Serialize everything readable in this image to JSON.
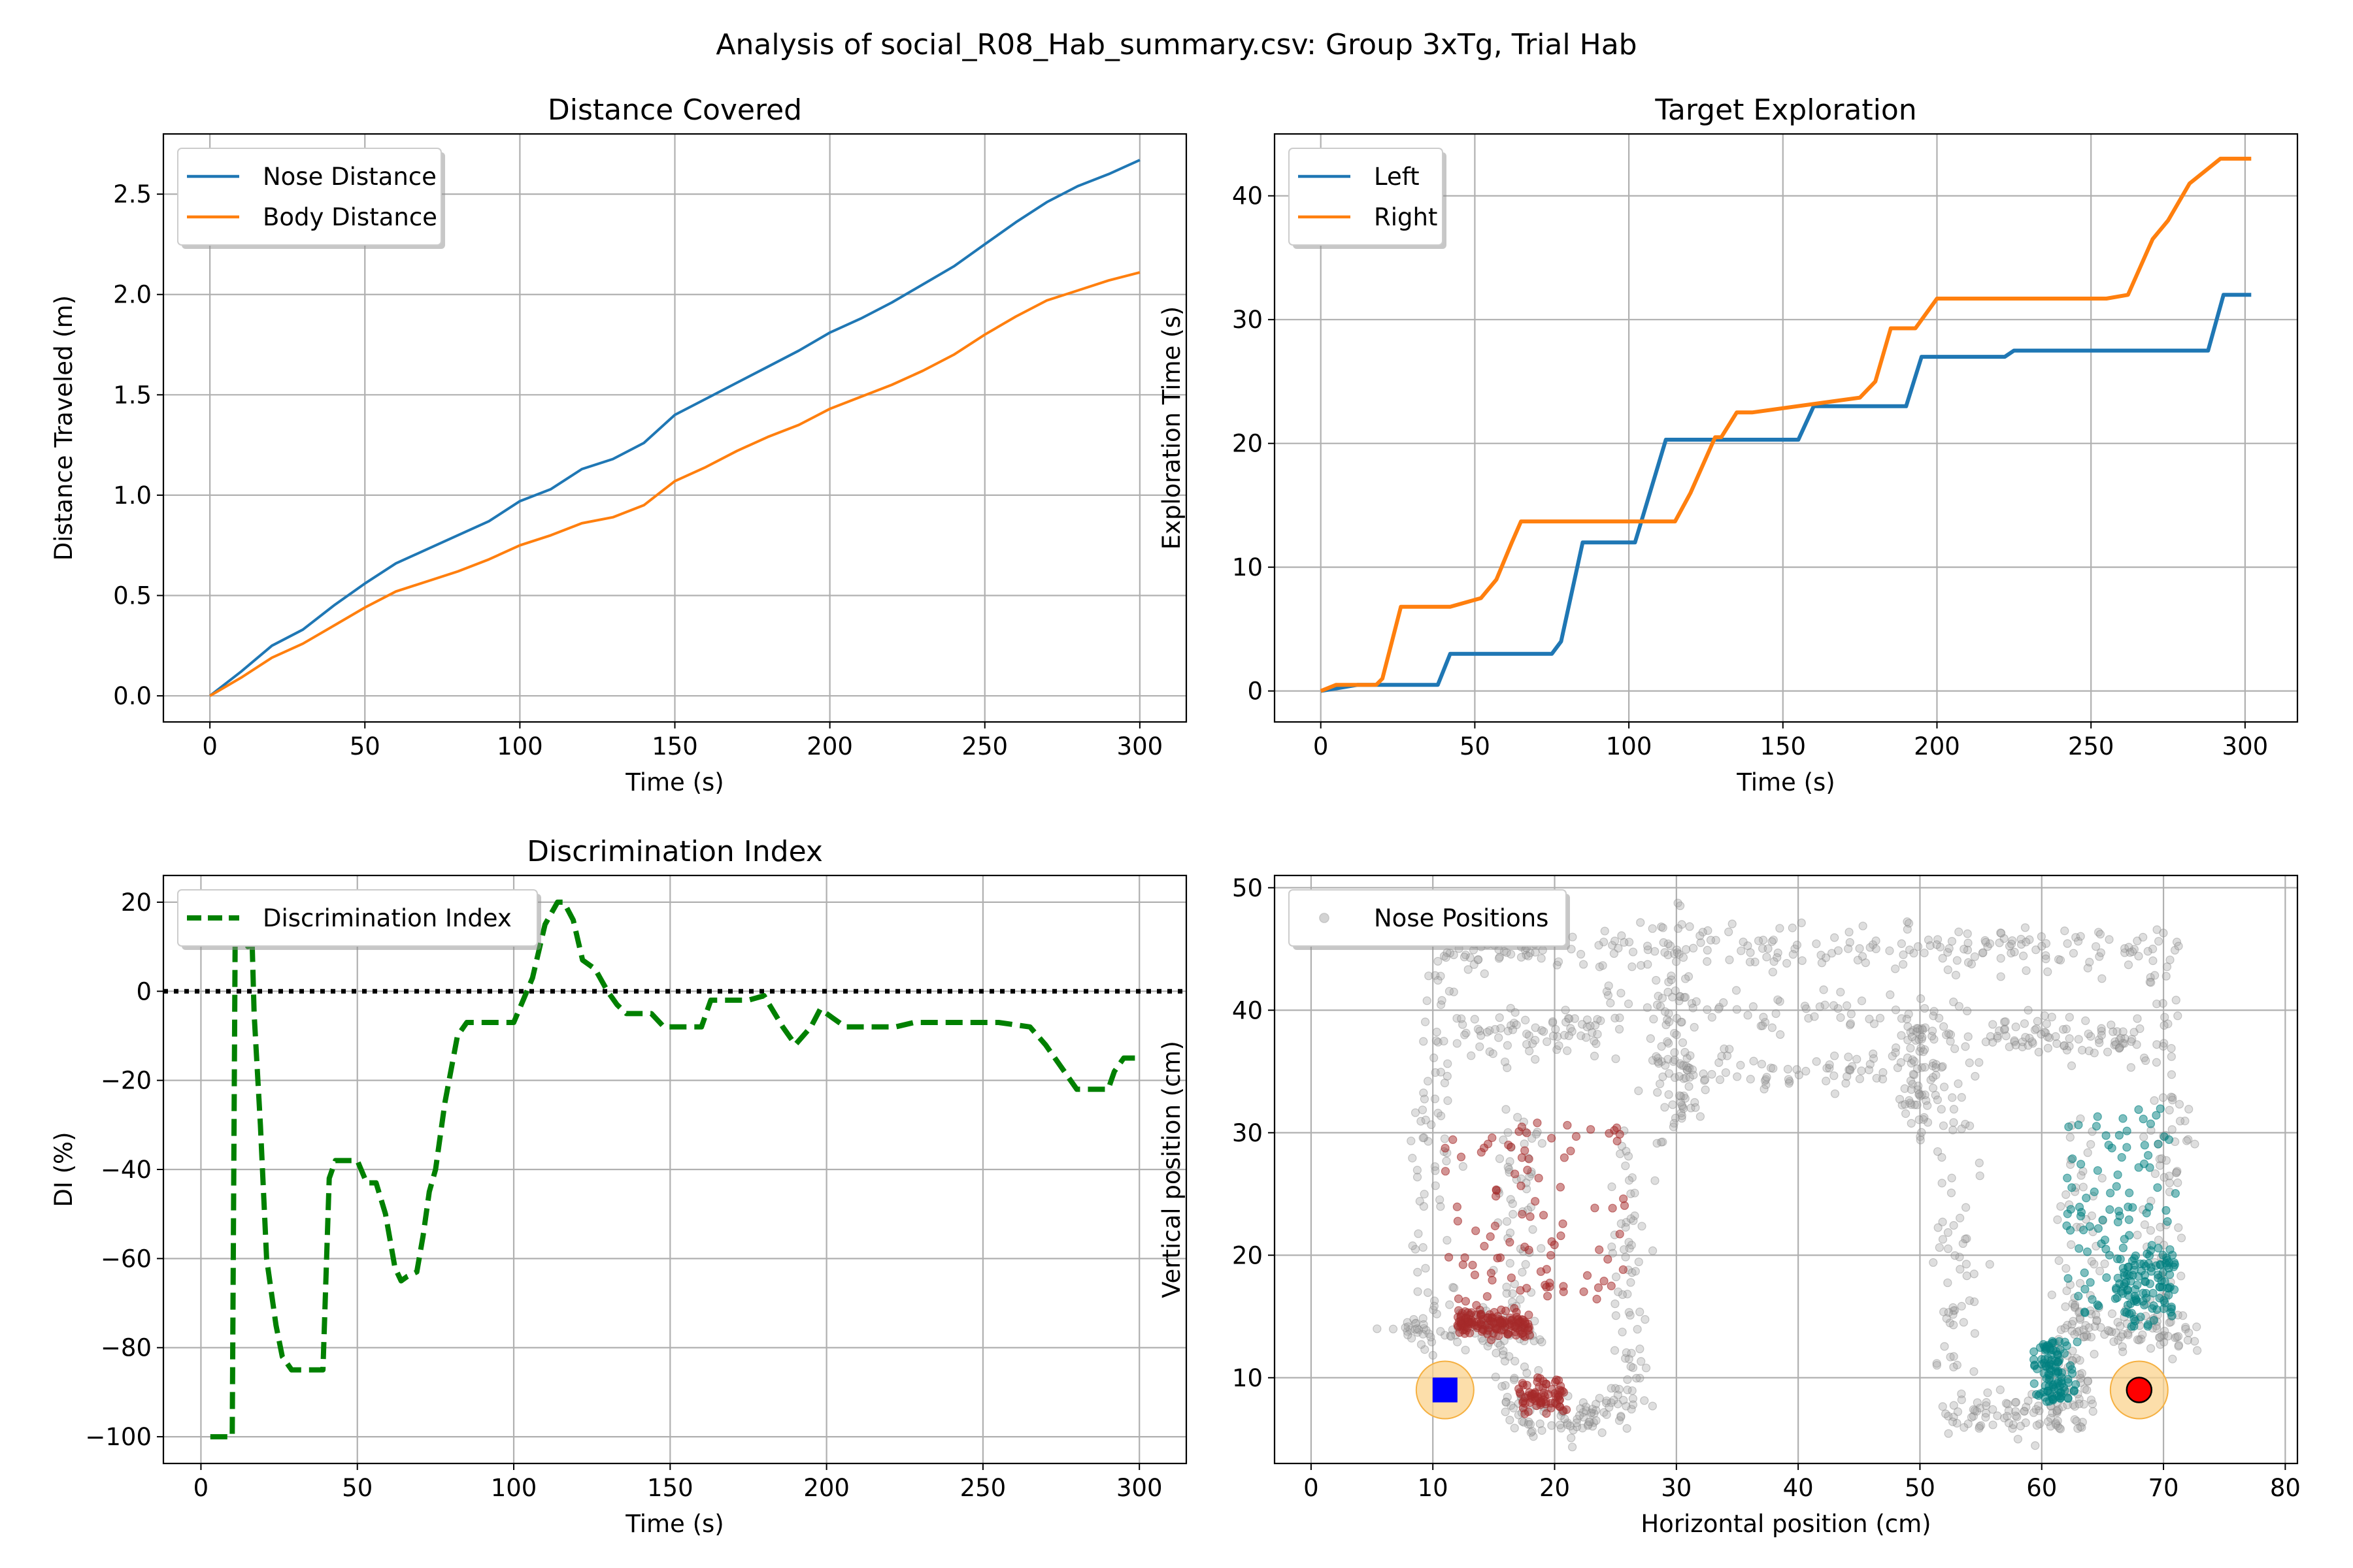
{
  "figure": {
    "suptitle": "Analysis of social_R08_Hab_summary.csv: Group 3xTg, Trial Hab"
  },
  "chart_data": [
    {
      "id": "distance",
      "type": "line",
      "title": "Distance Covered",
      "xlabel": "Time (s)",
      "ylabel": "Distance Traveled (m)",
      "xlim": [
        -15,
        315
      ],
      "ylim": [
        -0.13,
        2.8
      ],
      "xticks": [
        0,
        50,
        100,
        150,
        200,
        250,
        300
      ],
      "yticks": [
        0.0,
        0.5,
        1.0,
        1.5,
        2.0,
        2.5
      ],
      "ytick_labels": [
        "0.0",
        "0.5",
        "1.0",
        "1.5",
        "2.0",
        "2.5"
      ],
      "grid": true,
      "legend_position": "upper-left",
      "series": [
        {
          "name": "Nose Distance",
          "color": "#1f77b4",
          "x": [
            0,
            10,
            20,
            30,
            40,
            50,
            60,
            70,
            80,
            90,
            100,
            110,
            120,
            130,
            140,
            150,
            160,
            170,
            180,
            190,
            200,
            210,
            220,
            230,
            240,
            250,
            260,
            270,
            280,
            290,
            300
          ],
          "y": [
            0.0,
            0.12,
            0.25,
            0.33,
            0.45,
            0.56,
            0.66,
            0.73,
            0.8,
            0.87,
            0.97,
            1.03,
            1.13,
            1.18,
            1.26,
            1.4,
            1.48,
            1.56,
            1.64,
            1.72,
            1.81,
            1.88,
            1.96,
            2.05,
            2.14,
            2.25,
            2.36,
            2.46,
            2.54,
            2.6,
            2.67
          ]
        },
        {
          "name": "Body Distance",
          "color": "#ff7f0e",
          "x": [
            0,
            10,
            20,
            30,
            40,
            50,
            60,
            70,
            80,
            90,
            100,
            110,
            120,
            130,
            140,
            150,
            160,
            170,
            180,
            190,
            200,
            210,
            220,
            230,
            240,
            250,
            260,
            270,
            280,
            290,
            300
          ],
          "y": [
            0.0,
            0.09,
            0.19,
            0.26,
            0.35,
            0.44,
            0.52,
            0.57,
            0.62,
            0.68,
            0.75,
            0.8,
            0.86,
            0.89,
            0.95,
            1.07,
            1.14,
            1.22,
            1.29,
            1.35,
            1.43,
            1.49,
            1.55,
            1.62,
            1.7,
            1.8,
            1.89,
            1.97,
            2.02,
            2.07,
            2.11
          ]
        }
      ]
    },
    {
      "id": "exploration",
      "type": "line",
      "title": "Target Exploration",
      "xlabel": "Time (s)",
      "ylabel": "Exploration Time (s)",
      "xlim": [
        -15,
        317
      ],
      "ylim": [
        -2.5,
        45
      ],
      "xticks": [
        0,
        50,
        100,
        150,
        200,
        250,
        300
      ],
      "yticks": [
        0,
        10,
        20,
        30,
        40
      ],
      "ytick_labels": [
        "0",
        "10",
        "20",
        "30",
        "40"
      ],
      "grid": true,
      "legend_position": "upper-left",
      "series": [
        {
          "name": "Left",
          "color": "#1f77b4",
          "x": [
            0,
            12,
            38,
            42,
            75,
            78,
            85,
            102,
            112,
            155,
            160,
            190,
            195,
            222,
            225,
            288,
            293,
            302
          ],
          "y": [
            0,
            0.5,
            0.5,
            3,
            3,
            4,
            12,
            12,
            20.3,
            20.3,
            23,
            23,
            27,
            27,
            27.5,
            27.5,
            32,
            32
          ]
        },
        {
          "name": "Right",
          "color": "#ff7f0e",
          "x": [
            0,
            5,
            18,
            20,
            26,
            42,
            52,
            57,
            62,
            65,
            115,
            120,
            128,
            130,
            135,
            140,
            175,
            180,
            185,
            193,
            200,
            205,
            255,
            262,
            270,
            275,
            282,
            292,
            302
          ],
          "y": [
            0,
            0.5,
            0.5,
            1,
            6.8,
            6.8,
            7.5,
            9,
            12,
            13.7,
            13.7,
            16,
            20.5,
            20.5,
            22.5,
            22.5,
            23.7,
            25,
            29.3,
            29.3,
            31.7,
            31.7,
            31.7,
            32,
            36.5,
            38,
            41,
            43,
            43
          ]
        }
      ]
    },
    {
      "id": "di",
      "type": "line",
      "title": "Discrimination Index",
      "xlabel": "Time (s)",
      "ylabel": "DI (%)",
      "xlim": [
        -12,
        315
      ],
      "ylim": [
        -106,
        26
      ],
      "xticks": [
        0,
        50,
        100,
        150,
        200,
        250,
        300
      ],
      "yticks": [
        -100,
        -80,
        -60,
        -40,
        -20,
        0,
        20
      ],
      "ytick_labels": [
        "−100",
        "−80",
        "−60",
        "−40",
        "−20",
        "0",
        "20"
      ],
      "grid": true,
      "legend_position": "upper-left",
      "reference_line": {
        "y": 0,
        "style": "dotted",
        "color": "#000000"
      },
      "series": [
        {
          "name": "Discrimination Index",
          "color": "#008000",
          "style": "dashed",
          "x": [
            3,
            10,
            11,
            13,
            15,
            16,
            17,
            19,
            21,
            24,
            26,
            29,
            31,
            34,
            36,
            37,
            39,
            41,
            43,
            46,
            50,
            53,
            56,
            59,
            62,
            64,
            66,
            69,
            71,
            73,
            75,
            78,
            82,
            85,
            88,
            92,
            96,
            100,
            103,
            106,
            110,
            114,
            116,
            119,
            122,
            126,
            130,
            133,
            136,
            140,
            144,
            148,
            152,
            156,
            160,
            163,
            166,
            170,
            175,
            180,
            186,
            190,
            195,
            198,
            202,
            206,
            212,
            218,
            222,
            228,
            235,
            245,
            255,
            265,
            270,
            275,
            280,
            285,
            290,
            292,
            295,
            300
          ],
          "y": [
            -100,
            -100,
            20,
            20,
            10,
            20,
            -5,
            -30,
            -60,
            -75,
            -82,
            -85,
            -85,
            -85,
            -85,
            -85,
            -85,
            -42,
            -38,
            -38,
            -38,
            -43,
            -43,
            -50,
            -62,
            -65,
            -64,
            -63,
            -55,
            -45,
            -40,
            -25,
            -10,
            -7,
            -7,
            -7,
            -7,
            -7,
            -2,
            3,
            15,
            20,
            20,
            16,
            7,
            5,
            0,
            -3,
            -5,
            -5,
            -5,
            -8,
            -8,
            -8,
            -8,
            -2,
            -2,
            -2,
            -2,
            -1,
            -8,
            -12,
            -8,
            -4,
            -6,
            -8,
            -8,
            -8,
            -8,
            -7,
            -7,
            -7,
            -7,
            -8,
            -12,
            -17,
            -22,
            -22,
            -22,
            -18,
            -15,
            -15
          ]
        }
      ]
    },
    {
      "id": "nose_positions",
      "type": "scatter",
      "xlabel": "Horizontal position (cm)",
      "ylabel": "Vertical position (cm)",
      "xlim": [
        -3,
        81
      ],
      "ylim": [
        3,
        51
      ],
      "xticks": [
        0,
        10,
        20,
        30,
        40,
        50,
        60,
        70,
        80
      ],
      "yticks": [
        10,
        20,
        30,
        40,
        50
      ],
      "ytick_labels": [
        "10",
        "20",
        "30",
        "40",
        "50"
      ],
      "grid": true,
      "legend_position": "upper-left",
      "legend_label": "Nose Positions",
      "colors": {
        "all": "#a0a0a0",
        "left_zone": "#a52a2a",
        "right_zone": "#008080",
        "halo": "#fbd38d",
        "left_marker": "#0000ff",
        "right_marker": "#ff0000"
      },
      "targets": [
        {
          "name": "left-target",
          "x": 11,
          "y": 9,
          "marker": "square"
        },
        {
          "name": "right-target",
          "x": 68,
          "y": 9,
          "marker": "circle"
        }
      ],
      "point_counts": {
        "all": 1500,
        "left_zone": 300,
        "right_zone": 300
      }
    }
  ]
}
